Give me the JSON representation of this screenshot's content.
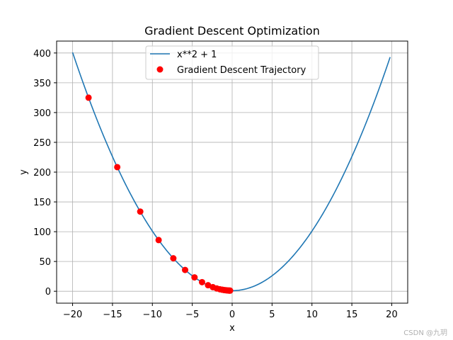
{
  "chart_data": {
    "type": "line",
    "title": "Gradient Descent Optimization",
    "xlabel": "x",
    "ylabel": "y",
    "xlim": [
      -22,
      22
    ],
    "ylim": [
      -20,
      420
    ],
    "xticks": [
      -20,
      -15,
      -10,
      -5,
      0,
      5,
      10,
      15,
      20
    ],
    "yticks": [
      0,
      50,
      100,
      150,
      200,
      250,
      300,
      350,
      400
    ],
    "xtick_labels": [
      "−20",
      "−15",
      "−10",
      "−5",
      "0",
      "5",
      "10",
      "15",
      "20"
    ],
    "ytick_labels": [
      "0",
      "50",
      "100",
      "150",
      "200",
      "250",
      "300",
      "350",
      "400"
    ],
    "grid": true,
    "legend_position": "upper-center",
    "series": [
      {
        "name": "x**2 + 1",
        "kind": "line",
        "color": "#1f77b4",
        "function": "x^2 + 1",
        "x_range": [
          -20,
          19.8
        ]
      },
      {
        "name": "Gradient Descent Trajectory",
        "kind": "scatter",
        "color": "#ff0000",
        "x": [
          -18.0,
          -14.4,
          -11.52,
          -9.216,
          -7.373,
          -5.898,
          -4.719,
          -3.775,
          -3.02,
          -2.416,
          -1.933,
          -1.546,
          -1.237,
          -0.99,
          -0.792,
          -0.634,
          -0.507,
          -0.406,
          -0.325,
          -0.26
        ],
        "y": [
          325.0,
          208.36,
          133.71,
          85.93,
          55.36,
          35.79,
          23.27,
          15.25,
          10.12,
          6.84,
          4.74,
          3.39,
          2.53,
          1.98,
          1.63,
          1.4,
          1.26,
          1.16,
          1.11,
          1.07
        ]
      }
    ]
  },
  "watermark": "CSDN @九玥"
}
